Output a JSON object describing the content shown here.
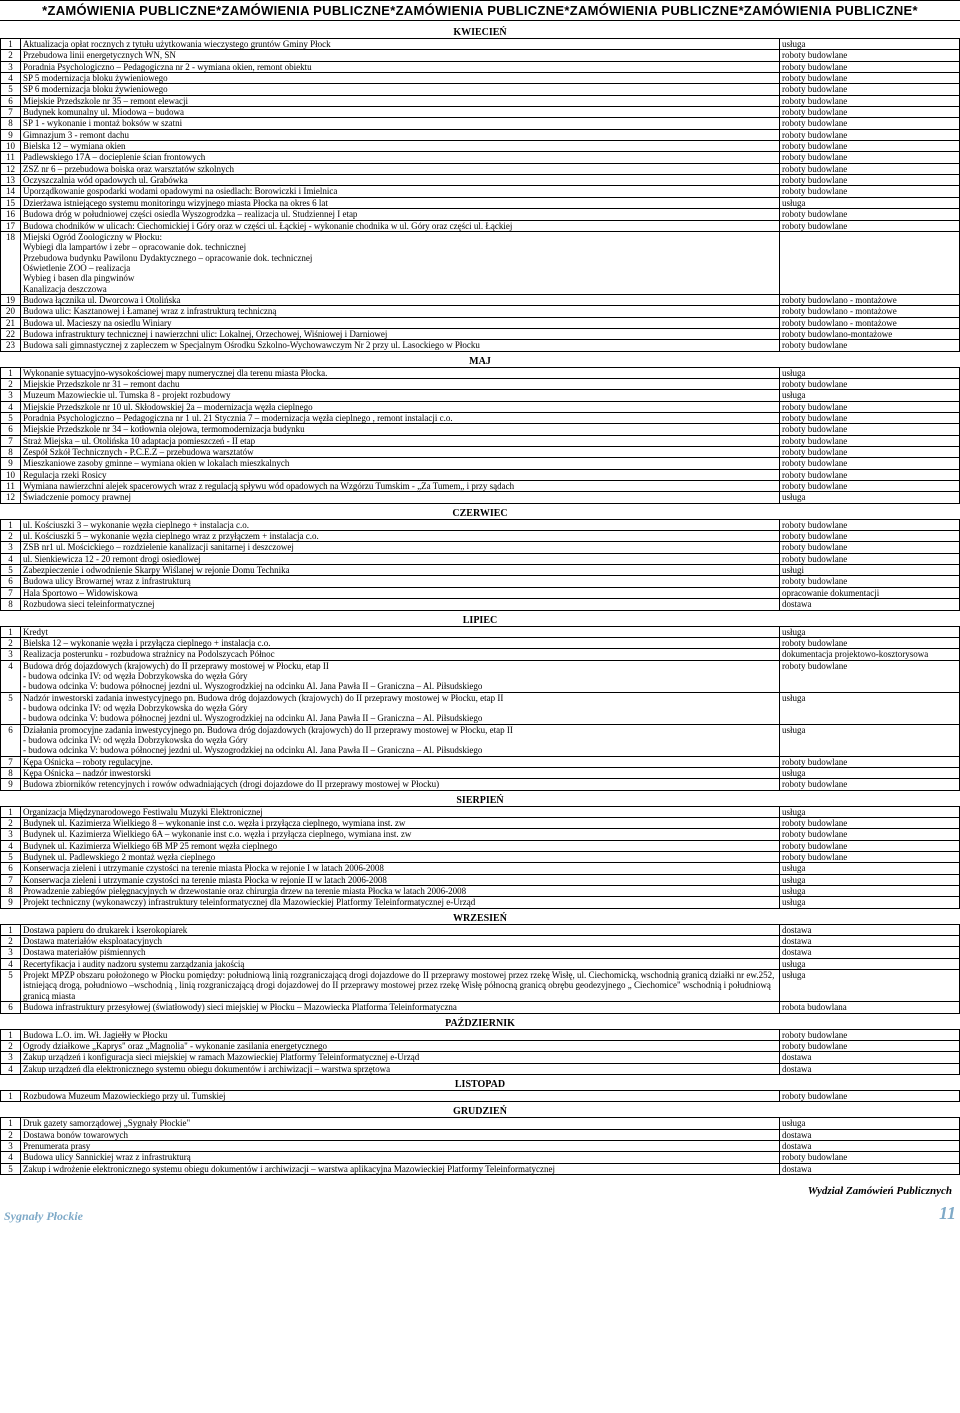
{
  "banner": "*ZAMÓWIENIA PUBLICZNE*ZAMÓWIENIA PUBLICZNE*ZAMÓWIENIA PUBLICZNE*ZAMÓWIENIA PUBLICZNE*ZAMÓWIENIA PUBLICZNE*",
  "footer_dept": "Wydział Zamówień Publicznych",
  "footer_left": "Sygnały Płockie",
  "footer_page": "11",
  "sections": [
    {
      "title": "KWIECIEŃ",
      "rows": [
        [
          "1",
          "Aktualizacja opłat rocznych z tytułu użytkowania wieczystego gruntów Gminy Płock",
          "usługa"
        ],
        [
          "2",
          "Przebudowa linii energetycznych WN, SN",
          "roboty budowlane"
        ],
        [
          "3",
          "Poradnia Psychologiczno – Pedagogiczna nr 2 - wymiana okien, remont obiektu",
          "roboty budowlane"
        ],
        [
          "4",
          "SP 5 modernizacja bloku żywieniowego",
          "roboty budowlane"
        ],
        [
          "5",
          "SP 6 modernizacja bloku żywieniowego",
          "roboty budowlane"
        ],
        [
          "6",
          "Miejskie Przedszkole nr 35 – remont elewacji",
          "roboty budowlane"
        ],
        [
          "7",
          "Budynek komunalny ul. Miodowa – budowa",
          "roboty budowlane"
        ],
        [
          "8",
          "SP 1 - wykonanie i montaż boksów w szatni",
          "roboty budowlane"
        ],
        [
          "9",
          "Gimnazjum 3 - remont dachu",
          "roboty budowlane"
        ],
        [
          "10",
          "Bielska 12 – wymiana okien",
          "roboty budowlane"
        ],
        [
          "11",
          "Padlewskiego 17A – docieplenie ścian frontowych",
          "roboty budowlane"
        ],
        [
          "12",
          "ZSZ nr 6 – przebudowa boiska oraz warsztatów szkolnych",
          "roboty budowlane"
        ],
        [
          "13",
          "Oczyszczalnia wód opadowych ul. Grabówka",
          "roboty budowlane"
        ],
        [
          "14",
          "Uporządkowanie gospodarki wodami opadowymi na osiedlach: Borowiczki i Imielnica",
          "roboty budowlane"
        ],
        [
          "15",
          "Dzierżawa istniejącego systemu monitoringu wizyjnego miasta Płocka na okres 6 lat",
          "usługa"
        ],
        [
          "16",
          "Budowa dróg w południowej części osiedla Wyszogrodzka – realizacja ul. Studziennej I etap",
          "roboty budowlane"
        ],
        [
          "17",
          "Budowa chodników w ulicach: Ciechomickiej i Góry oraz w części ul. Łąckiej - wykonanie chodnika w ul. Góry oraz części ul. Łąckiej",
          "roboty budowlane"
        ],
        [
          "18",
          "Miejski Ogród Zoologiczny w Płocku:\nWybiegi dla lampartów i zebr – opracowanie dok. technicznej\nPrzebudowa budynku Pawilonu Dydaktycznego – opracowanie dok. technicznej\nOświetlenie ZOO – realizacja\nWybieg i basen dla pingwinów\nKanalizacja deszczowa",
          ""
        ],
        [
          "19",
          "Budowa łącznika ul. Dworcowa i Otolińska",
          "roboty budowlano - montażowe"
        ],
        [
          "20",
          "Budowa ulic: Kasztanowej i Łamanej wraz z infrastrukturą techniczną",
          "roboty budowlano - montażowe"
        ],
        [
          "21",
          "Budowa ul. Macieszy na osiedlu Winiary",
          "roboty budowlano - montażowe"
        ],
        [
          "22",
          "Budowa infrastruktury technicznej i nawierzchni ulic: Lokalnej, Orzechowej, Wiśniowej i Darniowej",
          "roboty budowlano-montażowe"
        ],
        [
          "23",
          "Budowa sali gimnastycznej z zapleczem w Specjalnym Ośrodku Szkolno-Wychowawczym Nr 2 przy ul. Lasockiego w Płocku",
          "roboty budowlane"
        ]
      ]
    },
    {
      "title": "MAJ",
      "rows": [
        [
          "1",
          "Wykonanie sytuacyjno-wysokościowej mapy numerycznej dla terenu miasta Płocka.",
          "usługa"
        ],
        [
          "2",
          "Miejskie Przedszkole nr 31 – remont dachu",
          "roboty budowlane"
        ],
        [
          "3",
          "Muzeum Mazowieckie ul. Tumska 8 - projekt rozbudowy",
          "usługa"
        ],
        [
          "4",
          "Miejskie Przedszkole nr 10 ul. Skłodowskiej 2a – modernizacja węzła cieplnego",
          "roboty budowlane"
        ],
        [
          "5",
          "Poradnia Psychologiczno – Pedagogiczna nr 1 ul. 21 Stycznia 7 – modernizacja węzła cieplnego , remont instalacji c.o.",
          "roboty budowlane"
        ],
        [
          "6",
          "Miejskie Przedszkole nr 34 – kotłownia olejowa, termomodernizacja budynku",
          "roboty budowlane"
        ],
        [
          "7",
          "Straż Miejska – ul. Otolińska 10 adaptacja pomieszczeń - II etap",
          "roboty budowlane"
        ],
        [
          "8",
          "Zespół Szkół Technicznych - P.C.E.Z – przebudowa warsztatów",
          "roboty budowlane"
        ],
        [
          "9",
          "Mieszkaniowe zasoby gminne – wymiana okien w lokalach mieszkalnych",
          "roboty budowlane"
        ],
        [
          "10",
          "Regulacja rzeki Rosicy",
          "roboty budowlane"
        ],
        [
          "11",
          "Wymiana nawierzchni alejek spacerowych wraz z regulacją spływu wód opadowych na Wzgórzu Tumskim - „Za Tumem„ i przy sądach",
          "roboty budowlane"
        ],
        [
          "12",
          "Świadczenie pomocy prawnej",
          "usługa"
        ]
      ]
    },
    {
      "title": "CZERWIEC",
      "rows": [
        [
          "1",
          "ul. Kościuszki 3 – wykonanie węzła cieplnego + instalacja c.o.",
          "roboty budowlane"
        ],
        [
          "2",
          "ul. Kościuszki 5 – wykonanie węzła cieplnego wraz z przyłączem + instalacja c.o.",
          "roboty budowlane"
        ],
        [
          "3",
          "ZSB nr1 ul. Mościckiego – rozdzielenie kanalizacji sanitarnej i deszczowej",
          "roboty budowlane"
        ],
        [
          "4",
          "ul. Sienkiewicza 12 - 20 remont drogi osiedlowej",
          "roboty budowlane"
        ],
        [
          "5",
          "Zabezpieczenie i odwodnienie Skarpy Wiślanej w rejonie Domu Technika",
          "usługi"
        ],
        [
          "6",
          "Budowa ulicy Browarnej wraz z infrastrukturą",
          "roboty budowlane"
        ],
        [
          "7",
          "Hala Sportowo – Widowiskowa",
          "opracowanie dokumentacji"
        ],
        [
          "8",
          "Rozbudowa sieci teleinformatycznej",
          "dostawa"
        ]
      ]
    },
    {
      "title": "LIPIEC",
      "rows": [
        [
          "1",
          "Kredyt",
          "usługa"
        ],
        [
          "2",
          "Bielska 12 – wykonanie węzła i przyłącza cieplnego + instalacja c.o.",
          "roboty budowlane"
        ],
        [
          "3",
          "Realizacja posterunku - rozbudowa strażnicy na Podolszycach Północ",
          "dokumentacja projektowo-kosztorysowa"
        ],
        [
          "4",
          "Budowa dróg  dojazdowych (krajowych) do II przeprawy mostowej w Płocku, etap II\n- budowa odcinka IV: od węzła Dobrzykowska do węzła Góry\n- budowa odcinka V: budowa północnej jezdni ul. Wyszogrodzkiej na odcinku Al. Jana Pawła II – Graniczna – Al. Piłsudskiego",
          "roboty budowlane"
        ],
        [
          "5",
          "Nadzór inwestorski zadania inwestycyjnego pn. Budowa dróg  dojazdowych (krajowych) do II przeprawy mostowej w Płocku, etap II\n- budowa odcinka IV: od węzła Dobrzykowska do węzła Góry\n- budowa odcinka V: budowa północnej jezdni ul. Wyszogrodzkiej na odcinku Al. Jana Pawła II – Graniczna – Al. Piłsudskiego",
          "usługa"
        ],
        [
          "6",
          "Działania promocyjne zadania inwestycyjnego pn. Budowa dróg  dojazdowych (krajowych) do II przeprawy mostowej w Płocku, etap II\n- budowa odcinka IV: od węzła Dobrzykowska do węzła Góry\n- budowa odcinka V: budowa północnej jezdni ul. Wyszogrodzkiej na odcinku Al. Jana Pawła II – Graniczna – Al. Piłsudskiego",
          "usługa"
        ],
        [
          "7",
          "Kępa Ośnicka – roboty regulacyjne.",
          "roboty budowlane"
        ],
        [
          "8",
          "Kępa Ośnicka – nadzór inwestorski",
          "usługa"
        ],
        [
          "9",
          "Budowa zbiorników retencyjnych i rowów odwadniających (drogi dojazdowe do II przeprawy mostowej w Płocku)",
          "roboty budowlane"
        ]
      ]
    },
    {
      "title": "SIERPIEŃ",
      "rows": [
        [
          "1",
          "Organizacja Międzynarodowego Festiwalu Muzyki Elektronicznej",
          "usługa"
        ],
        [
          "2",
          "Budynek ul. Kazimierza Wielkiego 8 – wykonanie inst c.o. węzła i przyłącza cieplnego, wymiana inst. zw",
          "roboty budowlane"
        ],
        [
          "3",
          "Budynek ul. Kazimierza Wielkiego 6A – wykonanie inst c.o. węzła i przyłącza cieplnego, wymiana inst. zw",
          "roboty budowlane"
        ],
        [
          "4",
          "Budynek ul. Kazimierza Wielkiego 6B MP 25 remont węzła cieplnego",
          "roboty budowlane"
        ],
        [
          "5",
          "Budynek ul. Padlewskiego 2 montaż węzła cieplnego",
          "roboty budowlane"
        ],
        [
          "6",
          "Konserwacja  zieleni i utrzymanie czystości na terenie miasta Płocka w rejonie I w latach 2006-2008",
          "usługa"
        ],
        [
          "7",
          "Konserwacja  zieleni i utrzymanie czystości na terenie miasta Płocka w rejonie II w latach 2006-2008",
          "usługa"
        ],
        [
          "8",
          "Prowadzenie zabiegów pielęgnacyjnych w drzewostanie oraz chirurgia drzew na terenie miasta Płocka  w latach 2006-2008",
          "usługa"
        ],
        [
          "9",
          "Projekt techniczny (wykonawczy) infrastruktury teleinformatycznej dla Mazowieckiej Platformy Teleinformatycznej e-Urząd",
          "usługa"
        ]
      ]
    },
    {
      "title": "WRZESIEŃ",
      "rows": [
        [
          "1",
          "Dostawa papieru do drukarek i kserokopiarek",
          "dostawa"
        ],
        [
          "2",
          "Dostawa materiałów eksploatacyjnych",
          "dostawa"
        ],
        [
          "3",
          "Dostawa materiałów piśmiennych",
          "dostawa"
        ],
        [
          "4",
          "Recertyfikacja i audity nadzoru systemu zarządzania jakością",
          "usługa"
        ],
        [
          "5",
          "Projekt MPZP obszaru położonego w Płocku pomiędzy: południową linią rozgraniczającą drogi dojazdowe do II przeprawy mostowej przez rzekę Wisłę, ul. Ciechomicką, wschodnią granicą działki nr ew.252, istniejącą drogą, południowo –wschodnią , linią rozgraniczającą drogi dojazdowej do II przeprawy mostowej przez rzekę Wisłę północną granicą obrębu geodezyjnego „ Ciechomice\" wschodnią i południową granicą miasta",
          "usługa"
        ],
        [
          "6",
          "Budowa infrastruktury przesyłowej (światłowody) sieci miejskiej w Płocku – Mazowiecka Platforma Teleinformatyczna",
          "robota  budowlana"
        ]
      ]
    },
    {
      "title": "PAŹDZIERNIK",
      "rows": [
        [
          "1",
          "Budowa L.O. im. Wł. Jagiełły w Płocku",
          "roboty budowlane"
        ],
        [
          "2",
          "Ogrody działkowe „Kaprys\" oraz „Magnolia\" - wykonanie zasilania energetycznego",
          "roboty budowlane"
        ],
        [
          "3",
          "Zakup urządzeń i konfiguracja sieci miejskiej w ramach Mazowieckiej Platformy Teleinformatycznej e-Urząd",
          "dostawa"
        ],
        [
          "4",
          "Zakup urządzeń dla elektronicznego systemu obiegu dokumentów i archiwizacji – warstwa sprzętowa",
          "dostawa"
        ]
      ]
    },
    {
      "title": "LISTOPAD",
      "rows": [
        [
          "1",
          "Rozbudowa Muzeum Mazowieckiego przy ul. Tumskiej",
          "roboty budowlane"
        ]
      ]
    },
    {
      "title": "GRUDZIEŃ",
      "rows": [
        [
          "1",
          "Druk gazety samorządowej „Sygnały Płockie\"",
          "usługa"
        ],
        [
          "2",
          "Dostawa bonów towarowych",
          "dostawa"
        ],
        [
          "3",
          "Prenumerata prasy",
          "dostawa"
        ],
        [
          "4",
          "Budowa ulicy Sannickiej wraz z infrastrukturą",
          "roboty budowlane"
        ],
        [
          "5",
          "Zakup i wdrożenie elektronicznego systemu obiegu dokumentów i archiwizacji – warstwa aplikacyjna Mazowieckiej Platformy Teleinformatycznej",
          "dostawa"
        ]
      ]
    }
  ]
}
